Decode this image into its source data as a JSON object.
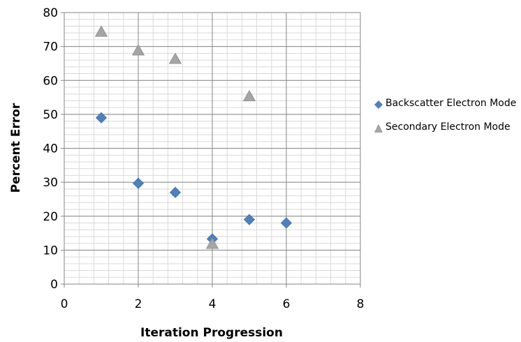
{
  "chart_data": {
    "type": "scatter",
    "title": "",
    "xlabel": "Iteration Progression",
    "ylabel": "Percent Error",
    "xlim": [
      0,
      8
    ],
    "ylim": [
      0,
      80
    ],
    "x_ticks": [
      0,
      2,
      4,
      6,
      8
    ],
    "y_ticks": [
      0,
      10,
      20,
      30,
      40,
      50,
      60,
      70,
      80
    ],
    "x_tick_labels": [
      "0",
      "2",
      "4",
      "6",
      "8"
    ],
    "y_tick_labels": [
      "0",
      "10",
      "20",
      "30",
      "40",
      "50",
      "60",
      "70",
      "80"
    ],
    "grid": true,
    "legend_position": "right",
    "series": [
      {
        "name": "Backscatter Electron Mode",
        "marker": "diamond",
        "color": "#4f81bd",
        "x": [
          1,
          2,
          3,
          4,
          5,
          6
        ],
        "y": [
          49,
          29.7,
          27,
          13.3,
          19,
          18
        ]
      },
      {
        "name": "Secondary Electron Mode",
        "marker": "triangle",
        "color": "#a5a5a5",
        "x": [
          1,
          2,
          3,
          4,
          5
        ],
        "y": [
          74.5,
          69,
          66.5,
          12,
          55.5
        ]
      }
    ]
  }
}
